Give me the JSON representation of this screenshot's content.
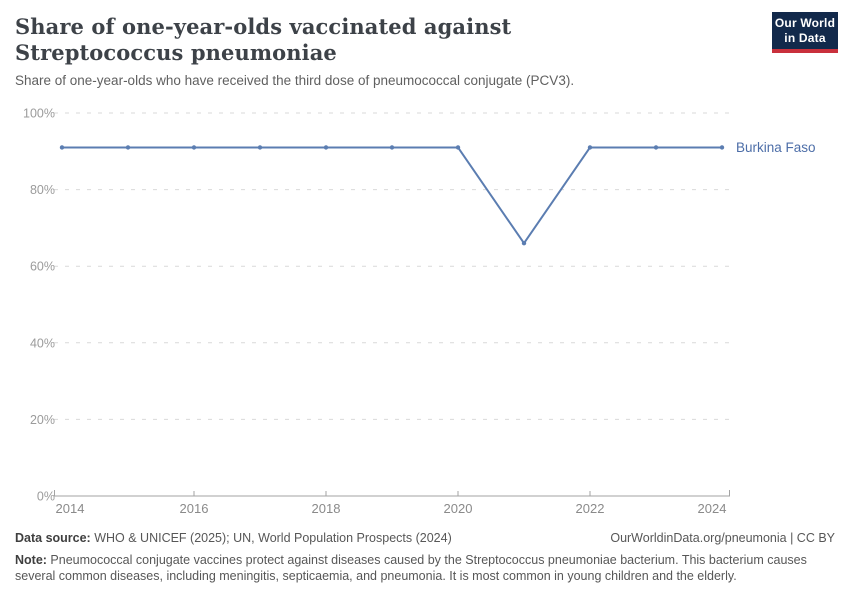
{
  "header": {
    "title": "Share of one-year-olds vaccinated against Streptococcus pneumoniae",
    "subtitle": "Share of one-year-olds who have received the third dose of pneumococcal conjugate (PCV3).",
    "logo": {
      "line1": "Our World",
      "line2": "in Data",
      "bg": "#12294B",
      "accent": "#C9303C"
    }
  },
  "chart_data": {
    "type": "line",
    "title": "Share of one-year-olds vaccinated against Streptococcus pneumoniae",
    "x": [
      2014,
      2015,
      2016,
      2017,
      2018,
      2019,
      2020,
      2021,
      2022,
      2023,
      2024
    ],
    "series": [
      {
        "name": "Burkina Faso",
        "values": [
          91,
          91,
          91,
          91,
          91,
          91,
          91,
          66,
          91,
          91,
          91
        ]
      }
    ],
    "entity_label": "Burkina Faso",
    "ylim": [
      0,
      100
    ],
    "yticks": [
      0,
      20,
      40,
      60,
      80,
      100
    ],
    "ytick_suffix": "%",
    "xticks": [
      2014,
      2016,
      2018,
      2020,
      2022,
      2024
    ],
    "grid": "dashed-horizontal",
    "legend_position": "right-of-line",
    "colors": {
      "line": "#5b7db1",
      "entity_label": "#4d6ea8",
      "gridline": "#d9d9d9",
      "axis": "#a3a3a3",
      "ytick_text": "#9b9b9b",
      "xtick_text": "#8a8a8a"
    }
  },
  "footer": {
    "data_source_label": "Data source:",
    "data_source_text": " WHO & UNICEF (2025); UN, World Population Prospects (2024)",
    "attribution": "OurWorldinData.org/pneumonia | CC BY",
    "note_label": "Note:",
    "note_text": " Pneumococcal conjugate vaccines protect against diseases caused by the Streptococcus pneumoniae bacterium. This bacterium causes several common diseases, including meningitis, septicaemia, and pneumonia. It is most common in young children and the elderly."
  }
}
